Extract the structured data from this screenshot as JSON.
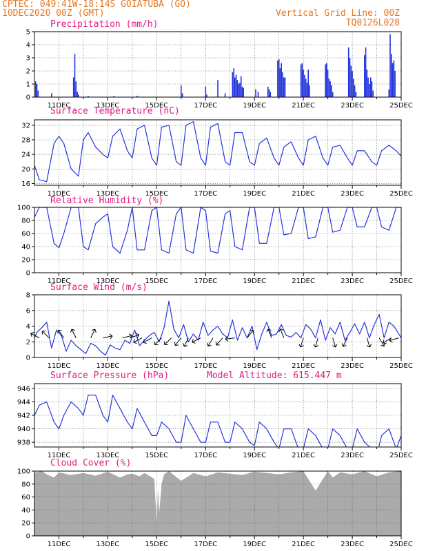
{
  "header": {
    "line1": "CPTEC:    049:41W-18:14S   GOIATUBA (GO)",
    "line2": "10DEC2020 00Z (GMT)",
    "grid_note": "Vertical Grid Line: 00Z",
    "model_code": "TQ0126L028"
  },
  "colors": {
    "header": "#e87722",
    "title": "#e0197d",
    "line": "#2233dd",
    "bar": "#2233dd",
    "cloud": "#aaaaaa",
    "grid": "#555555"
  },
  "x_tick_labels": [
    "11DEC",
    "13DEC",
    "15DEC",
    "17DEC",
    "19DEC",
    "21DEC",
    "23DEC",
    "25DEC"
  ],
  "panels": [
    {
      "id": "precip",
      "title": "Precipitation (mm/h)",
      "yticks": [
        0,
        1,
        2,
        3,
        4,
        5
      ]
    },
    {
      "id": "temp",
      "title": "Surface Temperature (nC)",
      "yticks": [
        16,
        20,
        24,
        28,
        32
      ]
    },
    {
      "id": "rh",
      "title": "Relative Humidity (%)",
      "yticks": [
        0,
        20,
        40,
        60,
        80,
        100
      ]
    },
    {
      "id": "wind",
      "title": "Surface Wind (m/s)",
      "yticks": [
        0,
        2,
        4,
        6,
        8
      ]
    },
    {
      "id": "pres",
      "title": "Surface Pressure (hPa)",
      "extra": "Model Altitude: 615.447 m",
      "yticks": [
        938,
        940,
        942,
        944,
        946
      ]
    },
    {
      "id": "cloud",
      "title": "Cloud Cover (%)",
      "yticks": [
        0,
        20,
        40,
        60,
        80,
        100
      ]
    }
  ],
  "chart_data": [
    {
      "type": "bar",
      "title": "Precipitation (mm/h)",
      "x_unit": "days since 10DEC2020 00Z",
      "ylim": [
        0,
        5
      ],
      "x": [
        0.05,
        0.1,
        0.15,
        0.7,
        1.6,
        1.65,
        1.7,
        1.75,
        1.8,
        2.2,
        3.25,
        4.2,
        6.0,
        6.05,
        7.0,
        7.05,
        7.5,
        7.8,
        8.1,
        8.15,
        8.2,
        8.25,
        8.3,
        8.35,
        8.4,
        8.45,
        8.5,
        8.55,
        9.05,
        9.15,
        9.55,
        9.6,
        9.65,
        9.95,
        10.0,
        10.05,
        10.1,
        10.15,
        10.2,
        10.25,
        10.9,
        10.95,
        11.0,
        11.05,
        11.1,
        11.15,
        11.2,
        11.25,
        11.9,
        11.95,
        12.0,
        12.05,
        12.1,
        12.15,
        12.2,
        12.85,
        12.9,
        12.95,
        13.0,
        13.05,
        13.1,
        13.15,
        13.5,
        13.55,
        13.6,
        13.65,
        13.7,
        13.75,
        13.8,
        13.85,
        14.5,
        14.55,
        14.6,
        14.65,
        14.7,
        14.75
      ],
      "values": [
        1.2,
        1.0,
        0.5,
        0.3,
        1.5,
        3.3,
        1.2,
        0.4,
        0.2,
        0.1,
        0.1,
        0.1,
        0.9,
        0.3,
        0.8,
        0.2,
        1.3,
        0.3,
        1.9,
        2.2,
        1.5,
        1.7,
        1.3,
        1.0,
        1.1,
        1.6,
        0.8,
        0.7,
        0.6,
        0.4,
        0.8,
        0.6,
        0.4,
        2.8,
        2.9,
        2.2,
        2.6,
        1.9,
        1.5,
        1.5,
        2.5,
        2.6,
        2.1,
        1.7,
        1.4,
        1.1,
        2.1,
        0.9,
        2.5,
        2.6,
        2.1,
        1.4,
        1.2,
        0.9,
        0.4,
        3.8,
        3.0,
        2.4,
        2.0,
        1.4,
        0.9,
        0.4,
        3.2,
        3.8,
        2.1,
        1.5,
        1.0,
        1.5,
        1.2,
        0.5,
        0.6,
        4.8,
        3.3,
        2.6,
        2.8,
        2.0
      ]
    },
    {
      "type": "line",
      "title": "Surface Temperature (nC)",
      "x_unit": "days since 10DEC2020 00Z",
      "ylim": [
        15.5,
        33.5
      ],
      "x": [
        0,
        0.2,
        0.5,
        0.8,
        1.0,
        1.2,
        1.5,
        1.8,
        2.0,
        2.2,
        2.5,
        2.8,
        3.0,
        3.2,
        3.5,
        3.8,
        4.0,
        4.2,
        4.5,
        4.8,
        5.0,
        5.2,
        5.5,
        5.8,
        6.0,
        6.2,
        6.5,
        6.8,
        7.0,
        7.2,
        7.5,
        7.8,
        8.0,
        8.2,
        8.5,
        8.8,
        9.0,
        9.2,
        9.5,
        9.8,
        10.0,
        10.2,
        10.5,
        10.8,
        11.0,
        11.2,
        11.5,
        11.8,
        12.0,
        12.2,
        12.5,
        12.8,
        13.0,
        13.2,
        13.5,
        13.8,
        14.0,
        14.2,
        14.5,
        14.8,
        15.0
      ],
      "values": [
        21,
        17,
        16.5,
        27,
        29,
        27,
        20,
        18,
        28,
        30,
        26,
        24,
        23,
        29,
        31,
        25,
        23,
        31,
        32,
        23,
        21,
        31.5,
        32,
        22,
        21,
        32,
        33,
        23,
        21,
        31.5,
        32.5,
        22,
        21,
        30,
        30,
        22,
        21,
        27,
        28.5,
        23,
        21,
        26,
        27.5,
        23,
        21,
        28,
        29,
        23,
        21,
        26,
        26.5,
        23,
        21,
        25,
        25,
        22,
        21,
        25,
        26.5,
        25,
        23.5
      ]
    },
    {
      "type": "line",
      "title": "Relative Humidity (%)",
      "x_unit": "days since 10DEC2020 00Z",
      "ylim": [
        0,
        100
      ],
      "x": [
        0,
        0.2,
        0.5,
        0.8,
        1.0,
        1.2,
        1.5,
        1.8,
        2.0,
        2.2,
        2.5,
        2.8,
        3.0,
        3.2,
        3.5,
        3.8,
        4.0,
        4.2,
        4.5,
        4.8,
        5.0,
        5.2,
        5.5,
        5.8,
        6.0,
        6.2,
        6.5,
        6.8,
        7.0,
        7.2,
        7.5,
        7.8,
        8.0,
        8.2,
        8.5,
        8.8,
        9.0,
        9.2,
        9.5,
        9.8,
        10.0,
        10.2,
        10.5,
        10.8,
        11.0,
        11.2,
        11.5,
        11.8,
        12.0,
        12.2,
        12.5,
        12.8,
        13.0,
        13.2,
        13.5,
        13.8,
        14.0,
        14.2,
        14.5,
        14.8,
        15.0
      ],
      "values": [
        85,
        100,
        100,
        45,
        38,
        60,
        100,
        100,
        40,
        35,
        75,
        85,
        90,
        40,
        30,
        65,
        100,
        35,
        35,
        95,
        100,
        35,
        30,
        90,
        100,
        35,
        30,
        100,
        95,
        33,
        30,
        90,
        95,
        40,
        35,
        100,
        100,
        45,
        45,
        100,
        100,
        58,
        60,
        100,
        100,
        52,
        55,
        100,
        100,
        62,
        65,
        100,
        100,
        70,
        70,
        100,
        100,
        70,
        65,
        100,
        100
      ]
    },
    {
      "type": "line",
      "title": "Surface Wind (m/s)",
      "x_unit": "days since 10DEC2020 00Z",
      "ylim": [
        0,
        8
      ],
      "x": [
        0,
        0.1,
        0.3,
        0.5,
        0.7,
        0.9,
        1.1,
        1.3,
        1.5,
        1.7,
        1.9,
        2.1,
        2.3,
        2.5,
        2.7,
        2.9,
        3.1,
        3.3,
        3.5,
        3.7,
        3.9,
        4.1,
        4.3,
        4.5,
        4.7,
        4.9,
        5.1,
        5.3,
        5.5,
        5.7,
        5.9,
        6.1,
        6.3,
        6.5,
        6.7,
        6.9,
        7.1,
        7.3,
        7.5,
        7.7,
        7.9,
        8.1,
        8.3,
        8.5,
        8.7,
        8.9,
        9.1,
        9.3,
        9.5,
        9.7,
        9.9,
        10.1,
        10.3,
        10.5,
        10.7,
        10.9,
        11.1,
        11.3,
        11.5,
        11.7,
        11.9,
        12.1,
        12.3,
        12.5,
        12.7,
        12.9,
        13.1,
        13.3,
        13.5,
        13.7,
        13.9,
        14.1,
        14.3,
        14.5,
        14.7,
        14.9,
        15.0
      ],
      "values": [
        2.5,
        3.2,
        3.8,
        4.5,
        1.2,
        3.5,
        2.8,
        0.8,
        2.2,
        1.5,
        1.0,
        0.5,
        1.8,
        1.5,
        0.8,
        0.3,
        1.6,
        1.2,
        1.0,
        2.2,
        1.8,
        3.5,
        1.5,
        2.2,
        2.8,
        3.2,
        2.0,
        3.8,
        7.2,
        3.6,
        2.5,
        4.2,
        2.0,
        3.0,
        2.2,
        4.5,
        2.8,
        3.5,
        4.0,
        3.0,
        2.5,
        4.8,
        2.2,
        3.8,
        2.5,
        4.0,
        1.0,
        3.0,
        4.5,
        2.8,
        3.0,
        4.2,
        2.8,
        2.6,
        3.2,
        2.5,
        4.2,
        3.6,
        2.5,
        4.8,
        2.2,
        3.8,
        3.0,
        4.5,
        2.2,
        3.2,
        4.3,
        3.0,
        4.5,
        2.5,
        4.2,
        5.5,
        2.5,
        4.5,
        4.0,
        3.0,
        2.5
      ],
      "vectors": [
        {
          "x": 0.2,
          "u": -1.5,
          "v": 0.8
        },
        {
          "x": 0.6,
          "u": -1.0,
          "v": 1.0
        },
        {
          "x": 1.2,
          "u": -0.7,
          "v": 1.0
        },
        {
          "x": 1.7,
          "u": -0.5,
          "v": 1.0
        },
        {
          "x": 2.3,
          "u": 0.5,
          "v": 1.0
        },
        {
          "x": 2.8,
          "u": 1.0,
          "v": 0.2
        },
        {
          "x": 3.6,
          "u": 1.2,
          "v": 0.3
        },
        {
          "x": 3.9,
          "u": 1.2,
          "v": 0.4
        },
        {
          "x": 4.4,
          "u": -1.5,
          "v": -0.8
        },
        {
          "x": 4.8,
          "u": -1.5,
          "v": -0.8
        },
        {
          "x": 5.2,
          "u": -1.0,
          "v": -1.0
        },
        {
          "x": 5.6,
          "u": -1.0,
          "v": -1.0
        },
        {
          "x": 6.0,
          "u": -0.8,
          "v": -1.0
        },
        {
          "x": 6.3,
          "u": -0.5,
          "v": -1.0
        },
        {
          "x": 6.8,
          "u": -1.2,
          "v": -0.6
        },
        {
          "x": 7.3,
          "u": -0.6,
          "v": -1.0
        },
        {
          "x": 7.7,
          "u": -0.8,
          "v": -0.9
        },
        {
          "x": 8.2,
          "u": -1.5,
          "v": -0.2
        },
        {
          "x": 8.7,
          "u": 0.8,
          "v": 1.0
        },
        {
          "x": 9.7,
          "u": -0.4,
          "v": 1.0
        },
        {
          "x": 10.2,
          "u": -0.4,
          "v": 1.0
        },
        {
          "x": 11.0,
          "u": -0.3,
          "v": -1.0
        },
        {
          "x": 11.6,
          "u": -0.3,
          "v": -1.0
        },
        {
          "x": 12.2,
          "u": 0.3,
          "v": -1.0
        },
        {
          "x": 12.8,
          "u": -0.5,
          "v": -1.0
        },
        {
          "x": 13.6,
          "u": 0.3,
          "v": -1.0
        },
        {
          "x": 14.1,
          "u": 0.6,
          "v": -1.0
        },
        {
          "x": 14.6,
          "u": -1.0,
          "v": -0.6
        },
        {
          "x": 14.9,
          "u": -1.0,
          "v": -0.3
        }
      ]
    },
    {
      "type": "line",
      "title": "Surface Pressure (hPa)",
      "x_unit": "days since 10DEC2020 00Z",
      "ylim": [
        937.3,
        946.7
      ],
      "x": [
        0,
        0.2,
        0.5,
        0.8,
        1.0,
        1.2,
        1.5,
        1.8,
        2.0,
        2.2,
        2.5,
        2.8,
        3.0,
        3.2,
        3.5,
        3.8,
        4.0,
        4.2,
        4.5,
        4.8,
        5.0,
        5.2,
        5.5,
        5.8,
        6.0,
        6.2,
        6.5,
        6.8,
        7.0,
        7.2,
        7.5,
        7.8,
        8.0,
        8.2,
        8.5,
        8.8,
        9.0,
        9.2,
        9.5,
        9.8,
        10.0,
        10.2,
        10.5,
        10.8,
        11.0,
        11.2,
        11.5,
        11.8,
        12.0,
        12.2,
        12.5,
        12.8,
        13.0,
        13.2,
        13.5,
        13.8,
        14.0,
        14.2,
        14.5,
        14.8,
        15.0
      ],
      "values": [
        942,
        943.5,
        944,
        941,
        940,
        942,
        944,
        943,
        942,
        945,
        945,
        942,
        941,
        945,
        943,
        941,
        940,
        943,
        941,
        939,
        939,
        941,
        940,
        938,
        938,
        942,
        940,
        938,
        938,
        941,
        941,
        938,
        938,
        941,
        940,
        938,
        937.5,
        941,
        940,
        938,
        937,
        940,
        940,
        937,
        937,
        940,
        939,
        937,
        937,
        940,
        939,
        937,
        937,
        940,
        938,
        937,
        936,
        939,
        940,
        937,
        939
      ]
    },
    {
      "type": "area",
      "title": "Cloud Cover (%)",
      "x_unit": "days since 10DEC2020 00Z",
      "ylim": [
        0,
        100
      ],
      "x": [
        0,
        0.3,
        0.5,
        0.8,
        1.0,
        1.5,
        2.0,
        2.5,
        3.0,
        3.5,
        3.8,
        4.0,
        4.3,
        4.5,
        4.9,
        5.0,
        5.05,
        5.1,
        5.2,
        5.3,
        5.5,
        6.0,
        6.5,
        7.0,
        7.5,
        8.0,
        8.5,
        9.0,
        9.5,
        10.0,
        10.5,
        11.0,
        11.5,
        12.0,
        12.2,
        12.5,
        13.0,
        13.5,
        14.0,
        14.5,
        15.0
      ],
      "values": [
        98,
        100,
        95,
        90,
        98,
        94,
        97,
        93,
        99,
        90,
        95,
        96,
        92,
        97,
        88,
        20,
        75,
        35,
        80,
        95,
        100,
        85,
        97,
        92,
        98,
        96,
        94,
        99,
        97,
        95,
        98,
        100,
        70,
        100,
        90,
        98,
        95,
        100,
        92,
        98,
        100
      ]
    }
  ]
}
